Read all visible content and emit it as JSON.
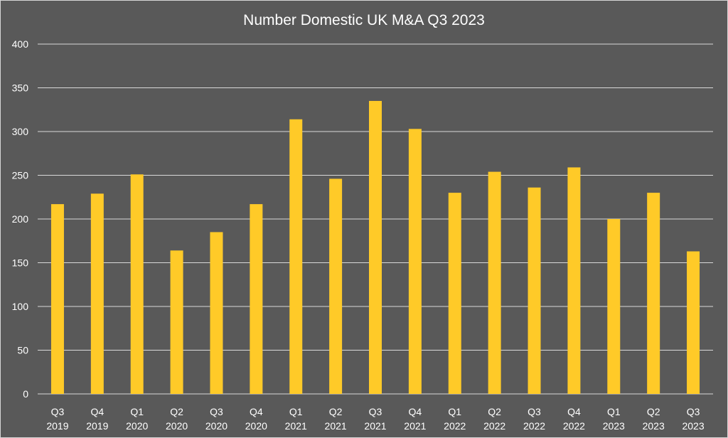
{
  "chart_data": {
    "type": "bar",
    "title": "Number Domestic UK M&A Q3 2023",
    "xlabel": "",
    "ylabel": "",
    "categories": [
      [
        "Q3",
        "2019"
      ],
      [
        "Q4",
        "2019"
      ],
      [
        "Q1",
        "2020"
      ],
      [
        "Q2",
        "2020"
      ],
      [
        "Q3",
        "2020"
      ],
      [
        "Q4",
        "2020"
      ],
      [
        "Q1",
        "2021"
      ],
      [
        "Q2",
        "2021"
      ],
      [
        "Q3",
        "2021"
      ],
      [
        "Q4",
        "2021"
      ],
      [
        "Q1",
        "2022"
      ],
      [
        "Q2",
        "2022"
      ],
      [
        "Q3",
        "2022"
      ],
      [
        "Q4",
        "2022"
      ],
      [
        "Q1",
        "2023"
      ],
      [
        "Q2",
        "2023"
      ],
      [
        "Q3",
        "2023"
      ]
    ],
    "values": [
      217,
      229,
      251,
      164,
      185,
      217,
      314,
      246,
      335,
      303,
      230,
      254,
      236,
      259,
      200,
      230,
      163
    ],
    "ylim": [
      0,
      400
    ],
    "yticks": [
      0,
      50,
      100,
      150,
      200,
      250,
      300,
      350,
      400
    ],
    "grid": true,
    "legend": "none",
    "colors": {
      "background": "#595959",
      "bar": "#ffca28",
      "gridline": "#d9d9d9",
      "text": "#ffffff"
    }
  }
}
